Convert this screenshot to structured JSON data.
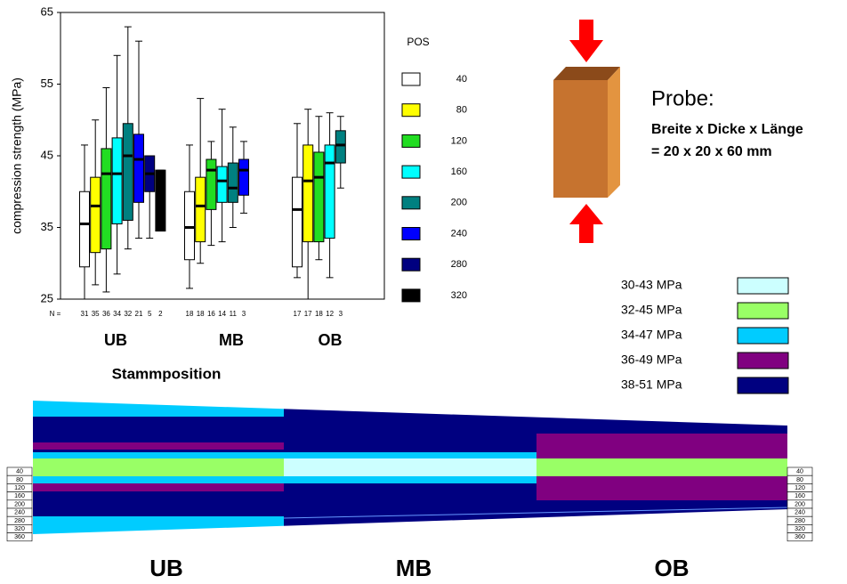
{
  "chart_data": {
    "type": "box",
    "y_label": "compression strength (MPa)",
    "x_label": "Stammposition",
    "n_label": "N =",
    "legend_title": "POS",
    "categories": [
      "UB",
      "MB",
      "OB"
    ],
    "ylim": [
      25,
      65
    ],
    "yticks": [
      25,
      35,
      45,
      55,
      65
    ],
    "series": [
      {
        "name": "40",
        "color": "#ffffff",
        "values": [
          {
            "min": 25,
            "q1": 29.5,
            "median": 35.5,
            "q3": 40,
            "max": 46.5,
            "n": 31
          },
          {
            "min": 26.5,
            "q1": 30.5,
            "median": 35,
            "q3": 40,
            "max": 46.5,
            "n": 18
          },
          {
            "min": 28,
            "q1": 29.5,
            "median": 37.5,
            "q3": 42,
            "max": 49.5,
            "n": 17
          }
        ]
      },
      {
        "name": "80",
        "color": "#ffff00",
        "values": [
          {
            "min": 27,
            "q1": 31.5,
            "median": 38,
            "q3": 42,
            "max": 50,
            "n": 35
          },
          {
            "min": 30,
            "q1": 33,
            "median": 38,
            "q3": 42,
            "max": 53,
            "n": 18
          },
          {
            "min": 25,
            "q1": 33,
            "median": 41.5,
            "q3": 46.5,
            "max": 51.5,
            "n": 17
          }
        ]
      },
      {
        "name": "120",
        "color": "#22dd22",
        "values": [
          {
            "min": 26,
            "q1": 32,
            "median": 42.5,
            "q3": 46,
            "max": 54.5,
            "n": 36
          },
          {
            "min": 32.5,
            "q1": 37.5,
            "median": 43,
            "q3": 44.5,
            "max": 47,
            "n": 16
          },
          {
            "min": 30.5,
            "q1": 33,
            "median": 42,
            "q3": 45.5,
            "max": 50.5,
            "n": 18
          }
        ]
      },
      {
        "name": "160",
        "color": "#00ffff",
        "values": [
          {
            "min": 28.5,
            "q1": 35.5,
            "median": 42.5,
            "q3": 47.5,
            "max": 59,
            "n": 34
          },
          {
            "min": 33,
            "q1": 38.5,
            "median": 41.5,
            "q3": 43.5,
            "max": 51.5,
            "n": 14
          },
          {
            "min": 28,
            "q1": 33.5,
            "median": 44,
            "q3": 46.5,
            "max": 51,
            "n": 12
          }
        ]
      },
      {
        "name": "200",
        "color": "#008080",
        "values": [
          {
            "min": 32,
            "q1": 36,
            "median": 45,
            "q3": 49.5,
            "max": 63,
            "n": 32
          },
          {
            "min": 35,
            "q1": 38.5,
            "median": 40.5,
            "q3": 44,
            "max": 49,
            "n": 11
          },
          {
            "min": 40.5,
            "q1": 44,
            "median": 46.5,
            "q3": 48.5,
            "max": 50.5,
            "n": 3
          }
        ]
      },
      {
        "name": "240",
        "color": "#0000ff",
        "values": [
          {
            "min": 33.5,
            "q1": 38.5,
            "median": 44.5,
            "q3": 48,
            "max": 61,
            "n": 21
          },
          {
            "min": 37,
            "q1": 39.5,
            "median": 43,
            "q3": 44.5,
            "max": 47,
            "n": 3
          },
          null
        ]
      },
      {
        "name": "280",
        "color": "#000080",
        "values": [
          {
            "min": 33.5,
            "q1": 40,
            "median": 42.5,
            "q3": 45,
            "max": 45,
            "n": 5
          },
          null,
          null
        ]
      },
      {
        "name": "320",
        "color": "#000000",
        "values": [
          {
            "min": 34.5,
            "q1": 34.5,
            "median": 39,
            "q3": 43,
            "max": 43,
            "n": 2
          },
          null,
          null
        ]
      }
    ]
  },
  "specimen": {
    "title": "Probe:",
    "lines": [
      "Breite x Dicke x Länge",
      "= 20 x 20 x 60 mm"
    ]
  },
  "strength_classes": [
    {
      "label": "30-43 MPa",
      "color": "#ccffff"
    },
    {
      "label": "32-45 MPa",
      "color": "#99ff66"
    },
    {
      "label": "34-47 MPa",
      "color": "#00ccff"
    },
    {
      "label": "36-49 MPa",
      "color": "#800080"
    },
    {
      "label": "38-51 MPa",
      "color": "#000080"
    }
  ],
  "trunk": {
    "sections": [
      "UB",
      "MB",
      "OB"
    ],
    "positions": [
      "40",
      "80",
      "120",
      "160",
      "200",
      "240",
      "280",
      "320",
      "360"
    ]
  }
}
